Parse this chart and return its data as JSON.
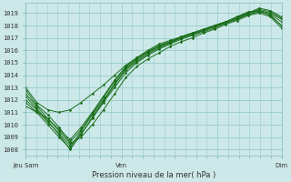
{
  "title": "Pression niveau de la mer( hPa )",
  "ylabel_ticks": [
    1008,
    1009,
    1010,
    1011,
    1012,
    1013,
    1014,
    1015,
    1016,
    1017,
    1018,
    1019
  ],
  "ylim": [
    1007.5,
    1019.8
  ],
  "xlim": [
    0,
    96
  ],
  "bg_color": "#cce8e8",
  "grid_color": "#99cccc",
  "line_color": "#1a6e1a",
  "marker_color": "#1a6e1a",
  "series": [
    [
      1013.0,
      1011.8,
      1011.2,
      1011.0,
      1011.2,
      1011.8,
      1012.5,
      1013.2,
      1014.0,
      1014.8,
      1015.4,
      1015.9,
      1016.3,
      1016.7,
      1017.0,
      1017.3,
      1017.6,
      1018.0,
      1018.3,
      1018.7,
      1019.1,
      1019.2,
      1018.8,
      1018.0
    ],
    [
      1012.5,
      1011.5,
      1010.5,
      1009.5,
      1008.5,
      1009.0,
      1010.0,
      1011.2,
      1012.5,
      1013.8,
      1014.7,
      1015.3,
      1015.8,
      1016.3,
      1016.7,
      1017.0,
      1017.4,
      1017.7,
      1018.1,
      1018.4,
      1018.8,
      1019.0,
      1018.7,
      1017.8
    ],
    [
      1012.0,
      1011.2,
      1010.2,
      1009.3,
      1008.3,
      1009.3,
      1010.5,
      1011.8,
      1013.0,
      1014.2,
      1015.0,
      1015.6,
      1016.1,
      1016.5,
      1016.9,
      1017.2,
      1017.5,
      1017.8,
      1018.2,
      1018.5,
      1018.9,
      1019.1,
      1018.9,
      1018.3
    ],
    [
      1011.8,
      1011.0,
      1010.0,
      1009.0,
      1008.1,
      1009.5,
      1010.8,
      1012.0,
      1013.3,
      1014.5,
      1015.2,
      1015.8,
      1016.3,
      1016.6,
      1017.0,
      1017.3,
      1017.6,
      1017.9,
      1018.2,
      1018.5,
      1018.9,
      1019.2,
      1019.0,
      1018.5
    ],
    [
      1012.3,
      1011.3,
      1010.3,
      1009.2,
      1008.0,
      1009.2,
      1010.6,
      1011.9,
      1013.2,
      1014.4,
      1015.1,
      1015.7,
      1016.2,
      1016.6,
      1017.0,
      1017.3,
      1017.6,
      1017.9,
      1018.3,
      1018.6,
      1019.0,
      1019.3,
      1019.1,
      1018.6
    ],
    [
      1011.5,
      1011.0,
      1010.5,
      1009.6,
      1008.8,
      1009.8,
      1011.0,
      1012.3,
      1013.6,
      1014.7,
      1015.4,
      1016.0,
      1016.5,
      1016.8,
      1017.1,
      1017.4,
      1017.7,
      1018.0,
      1018.3,
      1018.6,
      1019.0,
      1019.2,
      1018.8,
      1018.0
    ],
    [
      1012.8,
      1011.6,
      1010.8,
      1009.8,
      1008.6,
      1009.6,
      1010.9,
      1012.2,
      1013.5,
      1014.6,
      1015.3,
      1015.9,
      1016.4,
      1016.7,
      1017.1,
      1017.4,
      1017.7,
      1018.0,
      1018.3,
      1018.7,
      1019.0,
      1019.4,
      1019.2,
      1018.7
    ]
  ],
  "xtick_positions": [
    0,
    36,
    72,
    96
  ],
  "xtick_labels": [
    "Jeu Sam",
    "Ven",
    "",
    "Dim"
  ]
}
